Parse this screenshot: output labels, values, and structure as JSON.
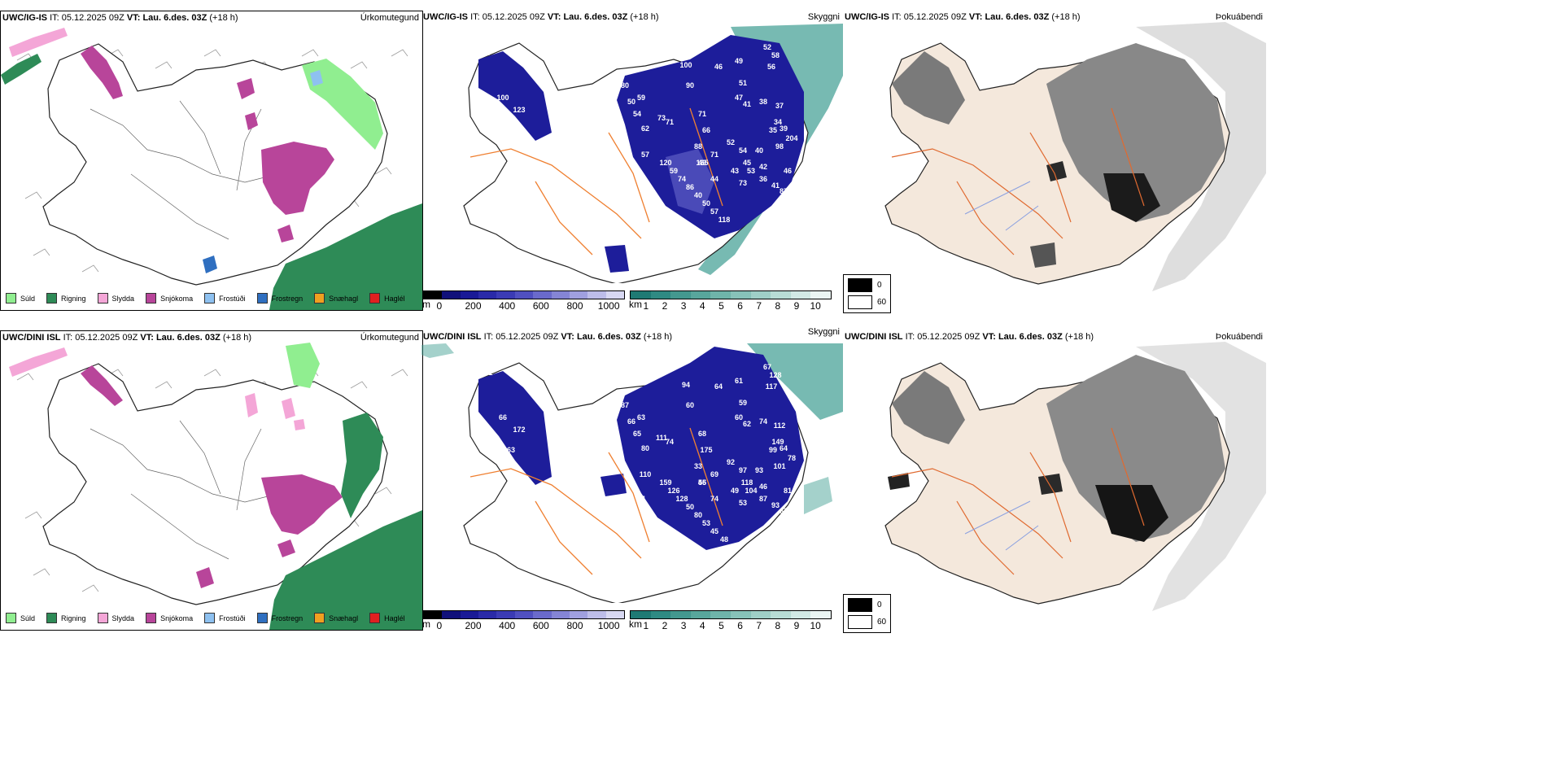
{
  "rows": [
    {
      "model": "UWC/IG-IS",
      "it_label": "IT:",
      "it_value": "05.12.2025 09Z",
      "vt_label": "VT:",
      "vt_value": "Lau. 6.des. 03Z",
      "lead": "(+18 h)",
      "panels": {
        "precip": "Úrkomutegund",
        "cloud": "Skyggni",
        "fog": "Þokuábendi"
      },
      "cloud_labels": [
        "70",
        "59",
        "100",
        "123",
        "74",
        "80",
        "50",
        "59",
        "54",
        "62",
        "73",
        "71",
        "100",
        "90",
        "46",
        "49",
        "51",
        "47",
        "41",
        "38",
        "52",
        "58",
        "56",
        "37",
        "34",
        "35",
        "39",
        "71",
        "66",
        "88",
        "49",
        "71",
        "52",
        "54",
        "45",
        "53",
        "42",
        "59",
        "57",
        "120",
        "74",
        "86",
        "40",
        "50",
        "57",
        "118",
        "165",
        "73",
        "36",
        "41",
        "87",
        "46",
        "204",
        "98",
        "40",
        "43",
        "44"
      ]
    },
    {
      "model": "UWC/DINI ISL",
      "it_label": "IT:",
      "it_value": "05.12.2025 09Z",
      "vt_label": "VT:",
      "vt_value": "Lau. 6.des. 03Z",
      "lead": "(+18 h)",
      "panels": {
        "precip": "Úrkomutegund",
        "cloud": "Skyggni",
        "fog": "Þokuábendi"
      },
      "cloud_labels": [
        "101",
        "73",
        "66",
        "172",
        "63",
        "87",
        "66",
        "63",
        "65",
        "80",
        "111",
        "74",
        "94",
        "60",
        "64",
        "61",
        "59",
        "60",
        "62",
        "74",
        "67",
        "128",
        "117",
        "112",
        "149",
        "99",
        "64",
        "68",
        "175",
        "33",
        "46",
        "69",
        "92",
        "97",
        "118",
        "104",
        "46",
        "126",
        "110",
        "159",
        "128",
        "50",
        "80",
        "53",
        "45",
        "48",
        "55",
        "53",
        "87",
        "93",
        "67",
        "81",
        "78",
        "101",
        "93",
        "49",
        "74",
        "36",
        "74"
      ]
    }
  ],
  "precip_legend": [
    {
      "label": "Súld",
      "color": "#90ee90"
    },
    {
      "label": "Rigning",
      "color": "#2e8b57"
    },
    {
      "label": "Slydda",
      "color": "#f4a6d7"
    },
    {
      "label": "Snjókoma",
      "color": "#b8459a"
    },
    {
      "label": "Frostúði",
      "color": "#8ec1f0"
    },
    {
      "label": "Frostregn",
      "color": "#2f6fc0"
    },
    {
      "label": "Snæhagl",
      "color": "#f0a020"
    },
    {
      "label": "Haglél",
      "color": "#e02020"
    }
  ],
  "cloud_base_bar": {
    "unit": "m",
    "ticks": [
      "0",
      "200",
      "400",
      "600",
      "800",
      "1000"
    ],
    "colors": [
      "#000000",
      "#10107a",
      "#1a1a96",
      "#2a2aa8",
      "#3b3bb4",
      "#5050c0",
      "#6a6acb",
      "#8585d5",
      "#a0a0df",
      "#bdbde9",
      "#d8d8f2"
    ]
  },
  "visibility_bar": {
    "unit": "km",
    "ticks": [
      "1",
      "2",
      "3",
      "4",
      "5",
      "6",
      "7",
      "8",
      "9",
      "10"
    ],
    "colors": [
      "#1f7a74",
      "#2f8a83",
      "#43988f",
      "#58a69c",
      "#6fb4aa",
      "#87c2b9",
      "#9fcfc7",
      "#b8dcd5",
      "#d2e9e5",
      "#ebf5f3"
    ]
  },
  "fog_legend": {
    "black": "0",
    "white": "60"
  },
  "colors": {
    "land_cream": "#f4e8dc",
    "road": "#ef7f30",
    "rain": "#2e8b57",
    "snow": "#b8459a",
    "cloud_blue": "#1d1d9a",
    "vis_teal": "#4aa398"
  }
}
